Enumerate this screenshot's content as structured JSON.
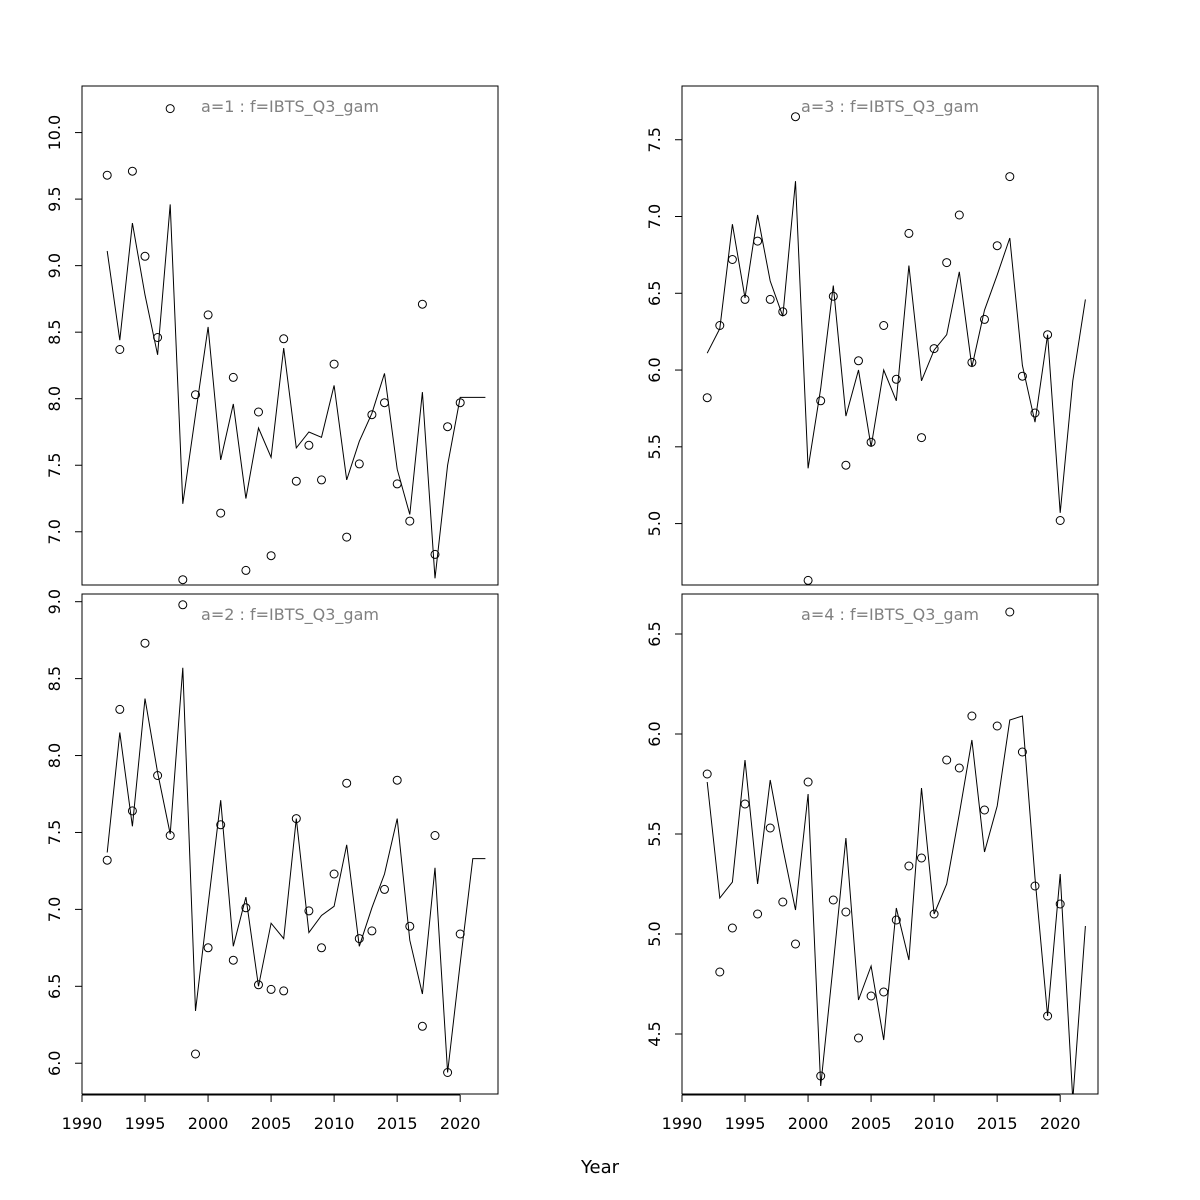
{
  "xlabel": "Year",
  "x_ticks": [
    1990,
    1995,
    2000,
    2005,
    2010,
    2015,
    2020
  ],
  "chart_data": [
    {
      "type": "scatter",
      "title": "a=1  :  f=IBTS_Q3_gam",
      "x_range": [
        1990,
        2023
      ],
      "ylim": [
        6.6,
        10.35
      ],
      "y_ticks": [
        "7.0",
        "7.5",
        "8.0",
        "8.5",
        "9.0",
        "9.5",
        "10.0"
      ],
      "series": [
        {
          "type": "scatter",
          "x": [
            1992,
            1993,
            1994,
            1995,
            1996,
            1997,
            1998,
            1999,
            2000,
            2001,
            2002,
            2003,
            2004,
            2005,
            2006,
            2007,
            2008,
            2009,
            2010,
            2011,
            2012,
            2013,
            2014,
            2015,
            2016,
            2017,
            2018,
            2019,
            2020
          ],
          "y": [
            9.68,
            8.37,
            9.71,
            9.07,
            8.46,
            10.18,
            6.64,
            8.03,
            8.63,
            7.14,
            8.16,
            6.71,
            7.9,
            6.82,
            8.45,
            7.38,
            7.65,
            7.39,
            8.26,
            6.96,
            7.51,
            7.88,
            7.97,
            7.36,
            7.08,
            8.71,
            6.83,
            7.79,
            7.97
          ]
        },
        {
          "type": "line",
          "x": [
            1992,
            1993,
            1994,
            1995,
            1996,
            1997,
            1998,
            1999,
            2000,
            2001,
            2002,
            2003,
            2004,
            2005,
            2006,
            2007,
            2008,
            2009,
            2010,
            2011,
            2012,
            2013,
            2014,
            2015,
            2016,
            2017,
            2018,
            2019,
            2020,
            2021,
            2022
          ],
          "y": [
            9.11,
            8.44,
            9.32,
            8.78,
            8.33,
            9.46,
            7.21,
            7.88,
            8.54,
            7.54,
            7.96,
            7.25,
            7.78,
            7.56,
            8.38,
            7.63,
            7.75,
            7.71,
            8.1,
            7.39,
            7.68,
            7.89,
            8.19,
            7.47,
            7.13,
            8.05,
            6.65,
            7.5,
            8.01,
            8.01,
            8.01
          ]
        }
      ]
    },
    {
      "type": "scatter",
      "title": "a=3  :  f=IBTS_Q3_gam",
      "x_range": [
        1990,
        2023
      ],
      "ylim": [
        4.6,
        7.85
      ],
      "y_ticks": [
        "5.0",
        "5.5",
        "6.0",
        "6.5",
        "7.0",
        "7.5"
      ],
      "series": [
        {
          "type": "scatter",
          "x": [
            1992,
            1993,
            1994,
            1995,
            1996,
            1997,
            1998,
            1999,
            2000,
            2001,
            2002,
            2003,
            2004,
            2005,
            2006,
            2007,
            2008,
            2009,
            2010,
            2011,
            2012,
            2013,
            2014,
            2015,
            2016,
            2017,
            2018,
            2019,
            2020
          ],
          "y": [
            5.82,
            6.29,
            6.72,
            6.46,
            6.84,
            6.46,
            6.38,
            7.65,
            4.63,
            5.8,
            6.48,
            5.38,
            6.06,
            5.53,
            6.29,
            5.94,
            6.89,
            5.56,
            6.14,
            6.7,
            7.01,
            6.05,
            6.33,
            6.81,
            7.26,
            5.96,
            5.72,
            6.23,
            5.02
          ]
        },
        {
          "type": "line",
          "x": [
            1992,
            1993,
            1994,
            1995,
            1996,
            1997,
            1998,
            1999,
            2000,
            2001,
            2002,
            2003,
            2004,
            2005,
            2006,
            2007,
            2008,
            2009,
            2010,
            2011,
            2012,
            2013,
            2014,
            2015,
            2016,
            2017,
            2018,
            2019,
            2020,
            2021,
            2022
          ],
          "y": [
            6.11,
            6.27,
            6.95,
            6.47,
            7.01,
            6.58,
            6.35,
            7.23,
            5.36,
            5.88,
            6.55,
            5.7,
            6.0,
            5.5,
            6.0,
            5.8,
            6.68,
            5.93,
            6.13,
            6.23,
            6.64,
            6.02,
            6.39,
            6.62,
            6.86,
            6.03,
            5.66,
            6.23,
            5.07,
            5.93,
            6.46
          ]
        }
      ]
    },
    {
      "type": "scatter",
      "title": "a=2  :  f=IBTS_Q3_gam",
      "x_range": [
        1990,
        2023
      ],
      "ylim": [
        5.8,
        9.05
      ],
      "y_ticks": [
        "6.0",
        "6.5",
        "7.0",
        "7.5",
        "8.0",
        "8.5",
        "9.0"
      ],
      "series": [
        {
          "type": "scatter",
          "x": [
            1992,
            1993,
            1994,
            1995,
            1996,
            1997,
            1998,
            1999,
            2000,
            2001,
            2002,
            2003,
            2004,
            2005,
            2006,
            2007,
            2008,
            2009,
            2010,
            2011,
            2012,
            2013,
            2014,
            2015,
            2016,
            2017,
            2018,
            2019,
            2020
          ],
          "y": [
            7.32,
            8.3,
            7.64,
            8.73,
            7.87,
            7.48,
            8.98,
            6.06,
            6.75,
            7.55,
            6.67,
            7.01,
            6.51,
            6.48,
            6.47,
            7.59,
            6.99,
            6.75,
            7.23,
            7.82,
            6.81,
            6.86,
            7.13,
            7.84,
            6.89,
            6.24,
            7.48,
            5.94,
            6.84
          ]
        },
        {
          "type": "line",
          "x": [
            1992,
            1993,
            1994,
            1995,
            1996,
            1997,
            1998,
            1999,
            2000,
            2001,
            2002,
            2003,
            2004,
            2005,
            2006,
            2007,
            2008,
            2009,
            2010,
            2011,
            2012,
            2013,
            2014,
            2015,
            2016,
            2017,
            2018,
            2019,
            2020,
            2021,
            2022
          ],
          "y": [
            7.37,
            8.15,
            7.54,
            8.37,
            7.89,
            7.49,
            8.57,
            6.34,
            7.03,
            7.71,
            6.76,
            7.08,
            6.5,
            6.91,
            6.81,
            7.59,
            6.85,
            6.96,
            7.02,
            7.42,
            6.76,
            7.01,
            7.23,
            7.59,
            6.8,
            6.45,
            7.27,
            5.94,
            6.65,
            7.33,
            7.33
          ]
        }
      ]
    },
    {
      "type": "scatter",
      "title": "a=4  :  f=IBTS_Q3_gam",
      "x_range": [
        1990,
        2023
      ],
      "ylim": [
        4.2,
        6.7
      ],
      "y_ticks": [
        "4.5",
        "5.0",
        "5.5",
        "6.0",
        "6.5"
      ],
      "series": [
        {
          "type": "scatter",
          "x": [
            1992,
            1993,
            1994,
            1995,
            1996,
            1997,
            1998,
            1999,
            2000,
            2001,
            2002,
            2003,
            2004,
            2005,
            2006,
            2007,
            2008,
            2009,
            2010,
            2011,
            2012,
            2013,
            2014,
            2015,
            2016,
            2017,
            2018,
            2019,
            2020
          ],
          "y": [
            5.8,
            4.81,
            5.03,
            5.65,
            5.1,
            5.53,
            5.16,
            4.95,
            5.76,
            4.29,
            5.17,
            5.11,
            4.48,
            4.69,
            4.71,
            5.07,
            5.34,
            5.38,
            5.1,
            5.87,
            5.83,
            6.09,
            5.62,
            6.04,
            6.61,
            5.91,
            5.24,
            4.59,
            5.15
          ]
        },
        {
          "type": "line",
          "x": [
            1992,
            1993,
            1994,
            1995,
            1996,
            1997,
            1998,
            1999,
            2000,
            2001,
            2002,
            2003,
            2004,
            2005,
            2006,
            2007,
            2008,
            2009,
            2010,
            2011,
            2012,
            2013,
            2014,
            2015,
            2016,
            2017,
            2018,
            2019,
            2020,
            2021,
            2022
          ],
          "y": [
            5.76,
            5.18,
            5.26,
            5.87,
            5.25,
            5.77,
            5.43,
            5.12,
            5.7,
            4.24,
            4.85,
            5.48,
            4.67,
            4.84,
            4.47,
            5.13,
            4.87,
            5.73,
            5.1,
            5.25,
            5.6,
            5.97,
            5.41,
            5.64,
            6.07,
            6.09,
            5.28,
            4.59,
            5.3,
            4.17,
            5.04
          ]
        }
      ]
    }
  ]
}
